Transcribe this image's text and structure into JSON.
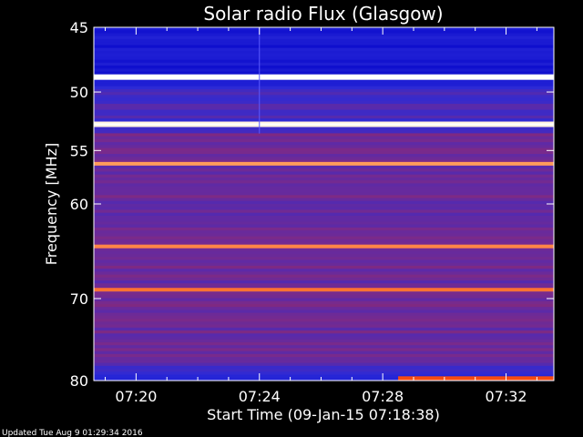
{
  "chart_data": {
    "type": "heatmap",
    "title": "Solar radio Flux (Glasgow)",
    "xlabel": "Start Time (09-Jan-15 07:18:38)",
    "ylabel": "Frequency [MHz]",
    "x_ticks": [
      "07:20",
      "07:24",
      "07:28",
      "07:32"
    ],
    "x_tick_minutes": [
      20,
      24,
      28,
      32
    ],
    "x_range_minutes": [
      18.63,
      33.55
    ],
    "y_ticks": [
      45,
      50,
      55,
      60,
      70,
      80
    ],
    "y_range": [
      45,
      80
    ],
    "y_scale": "log",
    "grid": false,
    "colormap": [
      "#000018",
      "#0000c8",
      "#2a2ad8",
      "#7a2a8a",
      "#b02020",
      "#ff5010",
      "#ffd090",
      "#ffffff"
    ],
    "bright_bands": [
      {
        "freq": 48.8,
        "intensity": 1.0
      },
      {
        "freq": 52.7,
        "intensity": 0.9
      },
      {
        "freq": 56.2,
        "intensity": 0.55
      },
      {
        "freq": 64.3,
        "intensity": 0.5
      },
      {
        "freq": 69.0,
        "intensity": 0.45
      }
    ],
    "step_change_minute": 24.0,
    "late_band": {
      "freq": 79.8,
      "start_minute": 28.5
    }
  },
  "footer": {
    "updated": "Updated Tue Aug  9 01:29:34 2016"
  }
}
